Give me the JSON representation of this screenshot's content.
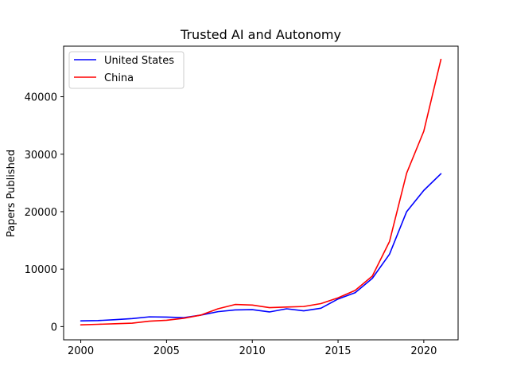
{
  "chart_data": {
    "type": "line",
    "title": "Trusted AI and Autonomy",
    "xlabel": "",
    "ylabel": "Papers Published",
    "x": [
      2000,
      2001,
      2002,
      2003,
      2004,
      2005,
      2006,
      2007,
      2008,
      2009,
      2010,
      2011,
      2012,
      2013,
      2014,
      2015,
      2016,
      2017,
      2018,
      2019,
      2020,
      2021
    ],
    "series": [
      {
        "name": "United States",
        "color": "#0000ff",
        "values": [
          1000,
          1050,
          1200,
          1400,
          1700,
          1650,
          1550,
          2000,
          2600,
          2900,
          2950,
          2550,
          3100,
          2750,
          3200,
          4800,
          5900,
          8400,
          12600,
          20000,
          23700,
          26600
        ]
      },
      {
        "name": "China",
        "color": "#ff0000",
        "values": [
          300,
          400,
          500,
          600,
          950,
          1100,
          1450,
          2000,
          3100,
          3850,
          3750,
          3300,
          3400,
          3500,
          4000,
          5000,
          6300,
          8800,
          14800,
          26700,
          34000,
          46500
        ]
      }
    ],
    "xlim": [
      1999,
      2022
    ],
    "ylim": [
      -2300,
      48800
    ],
    "xticks": [
      "2000",
      "2005",
      "2010",
      "2015",
      "2020"
    ],
    "yticks": [
      "0",
      "10000",
      "20000",
      "30000",
      "40000"
    ],
    "grid": false,
    "legend": "top-left"
  }
}
